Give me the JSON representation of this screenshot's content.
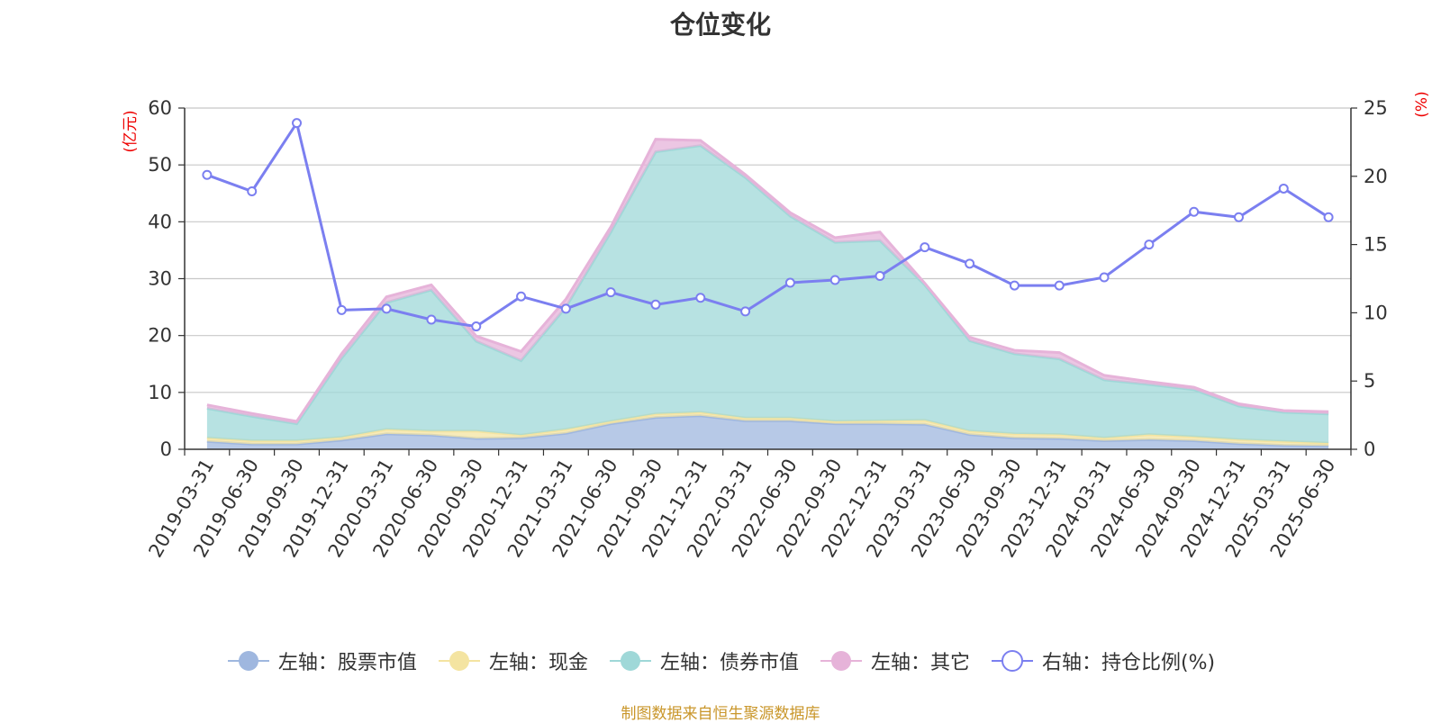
{
  "title": "仓位变化",
  "footer": "制图数据来自恒生聚源数据库",
  "colors": {
    "stock": "#9fb7df",
    "cash": "#f4e4a1",
    "bond": "#9fd8d8",
    "other": "#e6b3d9",
    "ratio": "#7b7ff0",
    "unit": "#ee0000",
    "grid": "#c8c8c8",
    "axis": "#333333"
  },
  "chart_data": {
    "type": "area",
    "title": "仓位变化",
    "left_unit": "(亿元)",
    "right_unit": "(%)",
    "left_ylim": [
      0,
      60
    ],
    "left_ticks": [
      0,
      10,
      20,
      30,
      40,
      50,
      60
    ],
    "right_ylim": [
      0,
      25
    ],
    "right_ticks": [
      0,
      5,
      10,
      15,
      20,
      25
    ],
    "grid": true,
    "legend_position": "bottom",
    "categories": [
      "2019-03-31",
      "2019-06-30",
      "2019-09-30",
      "2019-12-31",
      "2020-03-31",
      "2020-06-30",
      "2020-09-30",
      "2020-12-31",
      "2021-03-31",
      "2021-06-30",
      "2021-09-30",
      "2021-12-31",
      "2022-03-31",
      "2022-06-30",
      "2022-09-30",
      "2022-12-31",
      "2023-03-31",
      "2023-06-30",
      "2023-09-30",
      "2023-12-31",
      "2024-03-31",
      "2024-06-30",
      "2024-09-30",
      "2024-12-31",
      "2025-03-31",
      "2025-06-30"
    ],
    "series": [
      {
        "name": "左轴：股票市值",
        "key": "stock",
        "axis": "left",
        "kind": "stacked-area",
        "values": [
          1.4,
          0.9,
          0.9,
          1.6,
          2.7,
          2.5,
          1.9,
          2.0,
          2.8,
          4.5,
          5.6,
          5.9,
          5.0,
          5.0,
          4.5,
          4.5,
          4.4,
          2.6,
          2.0,
          1.9,
          1.5,
          1.7,
          1.5,
          1.0,
          0.7,
          0.6
        ]
      },
      {
        "name": "左轴：现金",
        "key": "cash",
        "axis": "left",
        "kind": "stacked-area",
        "values": [
          0.6,
          0.6,
          0.6,
          0.5,
          0.8,
          0.7,
          1.3,
          0.5,
          0.7,
          0.4,
          0.6,
          0.6,
          0.5,
          0.5,
          0.4,
          0.5,
          0.7,
          0.6,
          0.7,
          0.7,
          0.5,
          0.9,
          0.7,
          0.7,
          0.7,
          0.5
        ]
      },
      {
        "name": "左轴：债券市值",
        "key": "bond",
        "axis": "left",
        "kind": "stacked-area",
        "values": [
          5.2,
          4.3,
          3.0,
          13.9,
          22.3,
          24.8,
          15.8,
          13.1,
          21.5,
          33.3,
          46.1,
          46.9,
          42.3,
          35.5,
          31.5,
          31.7,
          23.8,
          15.9,
          14.1,
          13.3,
          10.2,
          8.8,
          8.3,
          5.9,
          5.1,
          5.1
        ]
      },
      {
        "name": "左轴：其它",
        "key": "other",
        "axis": "left",
        "kind": "stacked-area",
        "values": [
          0.6,
          0.5,
          0.4,
          0.8,
          1.0,
          0.9,
          0.9,
          1.6,
          1.4,
          0.9,
          2.2,
          0.9,
          0.5,
          0.6,
          0.8,
          1.5,
          0.3,
          0.6,
          0.6,
          1.1,
          0.8,
          0.5,
          0.4,
          0.4,
          0.3,
          0.4
        ]
      },
      {
        "name": "右轴：持仓比例(%)",
        "key": "ratio",
        "axis": "right",
        "kind": "line",
        "values": [
          20.1,
          18.9,
          23.9,
          10.2,
          10.3,
          9.5,
          9.0,
          11.2,
          10.3,
          11.5,
          10.6,
          11.1,
          10.1,
          12.2,
          12.4,
          12.7,
          14.8,
          13.6,
          12.0,
          12.0,
          12.6,
          15.0,
          17.4,
          17.0,
          19.1,
          17.0
        ]
      }
    ]
  }
}
